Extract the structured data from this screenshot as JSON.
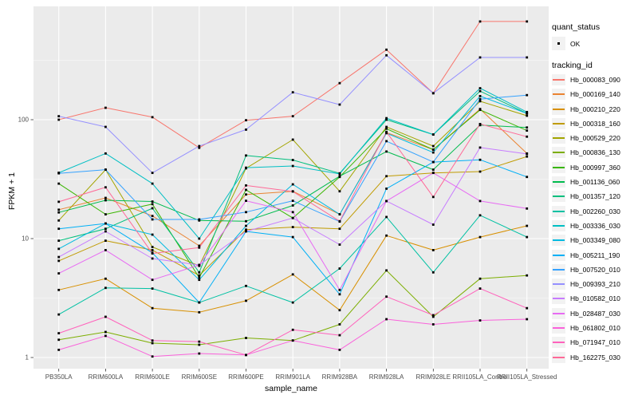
{
  "chart_data": {
    "type": "line",
    "xlabel": "sample_name",
    "ylabel": "FPKM + 1",
    "y_scale": "log10",
    "y_ticks": [
      1,
      10,
      100
    ],
    "y_tick_labels": [
      "1",
      "10",
      "100"
    ],
    "y_minor_ticks": [
      3.162,
      31.62,
      316.2
    ],
    "ylim": [
      0.85,
      920
    ],
    "grid": true,
    "legend_position": "right",
    "categories": [
      "PB350LA",
      "RRIM600LA",
      "RRIM600LE",
      "RRIM600SE",
      "RRIM600PE",
      "RRIM901LA",
      "RRIM928BA",
      "RRIM928LA",
      "RRIM928LE",
      "RRII105LA_Control",
      "RRII105LA_Stressed"
    ],
    "legend": {
      "quant_status": {
        "title": "quant_status",
        "items": [
          {
            "label": "OK",
            "marker": "black-point"
          }
        ]
      },
      "tracking_id": {
        "title": "tracking_id"
      }
    },
    "series": [
      {
        "name": "Hb_000083_090",
        "color": "#F8766D",
        "values": [
          100,
          126,
          105,
          58,
          99,
          107,
          203,
          388,
          167,
          670,
          670
        ]
      },
      {
        "name": "Hb_000169_140",
        "color": "#EA8331",
        "values": [
          17.5,
          22,
          15.5,
          8.7,
          23.5,
          25,
          16,
          78,
          56,
          123,
          52
        ]
      },
      {
        "name": "Hb_000210_220",
        "color": "#D89000",
        "values": [
          3.7,
          4.6,
          2.6,
          2.4,
          3.0,
          5.0,
          2.5,
          10.6,
          8.0,
          10.3,
          12.8
        ]
      },
      {
        "name": "Hb_000318_160",
        "color": "#C09B00",
        "values": [
          6.5,
          9.6,
          8.0,
          4.9,
          11.9,
          12.5,
          12.1,
          33.5,
          35.7,
          36.6,
          49
        ]
      },
      {
        "name": "Hb_000529_220",
        "color": "#A3A500",
        "values": [
          14.2,
          38,
          8.5,
          5.9,
          39,
          68,
          25,
          87,
          60,
          143,
          108
        ]
      },
      {
        "name": "Hb_000836_130",
        "color": "#7CAE00",
        "values": [
          1.41,
          1.64,
          1.32,
          1.28,
          1.46,
          1.39,
          1.9,
          5.4,
          2.2,
          4.6,
          4.9
        ]
      },
      {
        "name": "Hb_000997_360",
        "color": "#39B600",
        "values": [
          29,
          16,
          19.5,
          4.7,
          25.7,
          14.9,
          33,
          84,
          56,
          121,
          81
        ]
      },
      {
        "name": "Hb_001136_060",
        "color": "#00BB4E",
        "values": [
          16.6,
          21,
          20.5,
          14.2,
          14,
          19,
          33.5,
          54,
          38,
          90,
          86
        ]
      },
      {
        "name": "Hb_001357_120",
        "color": "#00BF7D",
        "values": [
          9.6,
          12.1,
          18,
          5.2,
          50,
          45.8,
          35.4,
          100,
          75,
          174,
          113
        ]
      },
      {
        "name": "Hb_002260_030",
        "color": "#00C1A3",
        "values": [
          2.3,
          3.85,
          3.8,
          2.9,
          4.0,
          2.9,
          5.6,
          15.2,
          5.2,
          15.7,
          10.3
        ]
      },
      {
        "name": "Hb_003336_030",
        "color": "#00BFC4",
        "values": [
          35.8,
          52,
          29,
          10,
          39.5,
          40.8,
          35,
          103,
          75,
          184,
          116
        ]
      },
      {
        "name": "Hb_003349_080",
        "color": "#00BAE0",
        "values": [
          8.2,
          13.4,
          10.8,
          4.5,
          12.8,
          28.6,
          16,
          77,
          53,
          158,
          113
        ]
      },
      {
        "name": "Hb_005211_190",
        "color": "#00B0F6",
        "values": [
          12.1,
          13.4,
          7.6,
          2.9,
          11.5,
          10.3,
          3.4,
          26.3,
          44,
          46,
          33
        ]
      },
      {
        "name": "Hb_007520_010",
        "color": "#35A2FF",
        "values": [
          35.4,
          38,
          14.5,
          14.5,
          16.7,
          20.8,
          13.9,
          66,
          44,
          149,
          161
        ]
      },
      {
        "name": "Hb_009393_210",
        "color": "#9590FF",
        "values": [
          107,
          87,
          35.7,
          60,
          82.5,
          170,
          134,
          348,
          167,
          334,
          334
        ]
      },
      {
        "name": "Hb_010582_010",
        "color": "#C77CFF",
        "values": [
          7.0,
          11.5,
          6.8,
          6.0,
          11.5,
          14.9,
          8.9,
          20.7,
          13.1,
          58.3,
          51.5
        ]
      },
      {
        "name": "Hb_028487_030",
        "color": "#E76BF3",
        "values": [
          5.1,
          8.0,
          4.5,
          6.0,
          20.8,
          16.7,
          3.7,
          20.7,
          35.7,
          20.7,
          17.9
        ]
      },
      {
        "name": "Hb_061802_010",
        "color": "#FA62DB",
        "values": [
          1.16,
          1.52,
          1.02,
          1.08,
          1.05,
          1.39,
          1.16,
          2.1,
          1.9,
          2.05,
          2.1
        ]
      },
      {
        "name": "Hb_071947_010",
        "color": "#FF62BC",
        "values": [
          1.6,
          2.2,
          1.39,
          1.36,
          1.05,
          1.71,
          1.54,
          3.25,
          2.27,
          3.8,
          2.6
        ]
      },
      {
        "name": "Hb_162275_030",
        "color": "#FF6A98",
        "values": [
          20.4,
          27,
          7.5,
          8.4,
          28,
          24.9,
          14,
          79,
          22.4,
          92,
          72
        ]
      }
    ],
    "style": {
      "panel_bg": "#EBEBEB",
      "grid_color": "#FFFFFF",
      "tick_label_color": "#4D4D4D",
      "axis_tick_color": "#333333",
      "point_color": "#000000",
      "legend_key_bg": "#F2F2F2"
    }
  }
}
